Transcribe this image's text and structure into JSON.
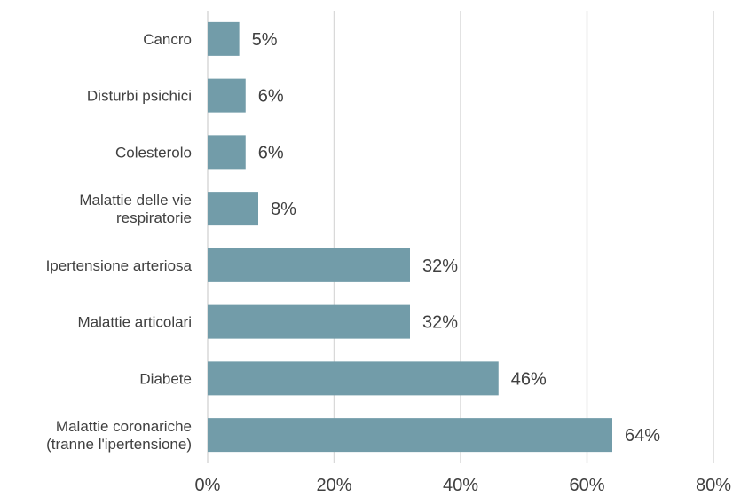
{
  "chart_data": {
    "type": "bar",
    "orientation": "horizontal",
    "categories": [
      "Cancro",
      "Disturbi psichici",
      "Colesterolo",
      "Malattie delle vie respiratorie",
      "Ipertensione arteriosa",
      "Malattie articolari",
      "Diabete",
      "Malattie coronariche (tranne l'ipertensione)"
    ],
    "category_label_lines": [
      [
        "Cancro"
      ],
      [
        "Disturbi psichici"
      ],
      [
        "Colesterolo"
      ],
      [
        "Malattie delle vie",
        "respiratorie"
      ],
      [
        "Ipertensione arteriosa"
      ],
      [
        "Malattie articolari"
      ],
      [
        "Diabete"
      ],
      [
        "Malattie coronariche",
        "(tranne l'ipertensione)"
      ]
    ],
    "values": [
      5,
      6,
      6,
      8,
      32,
      32,
      46,
      64
    ],
    "value_labels": [
      "5%",
      "6%",
      "6%",
      "8%",
      "32%",
      "32%",
      "46%",
      "64%"
    ],
    "xlim": [
      0,
      80
    ],
    "xticks": [
      0,
      20,
      40,
      60,
      80
    ],
    "xtick_labels": [
      "0%",
      "20%",
      "40%",
      "60%",
      "80%"
    ],
    "grid": true,
    "legend": "none",
    "bar_color": "#729ca9",
    "text_color": "#404040",
    "grid_color": "#d9d9d9"
  }
}
